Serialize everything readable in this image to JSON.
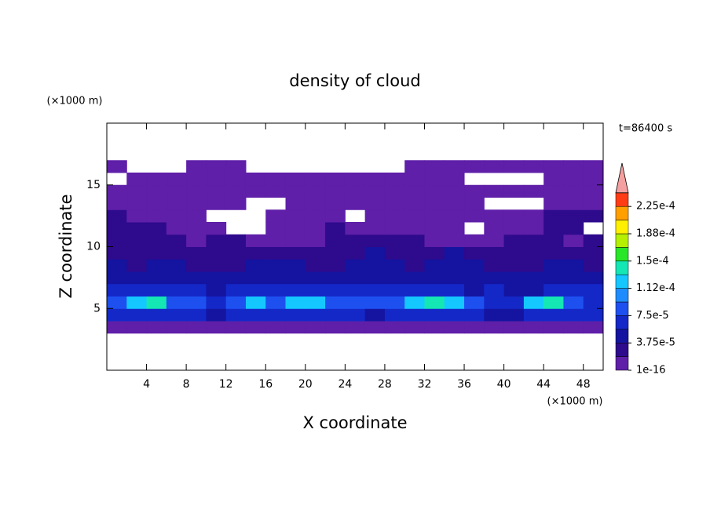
{
  "chart_data": {
    "type": "contour",
    "title": "density of cloud",
    "xlabel": "X coordinate",
    "ylabel": "Z coordinate",
    "xunit": "(×1000 m)",
    "yunit": "(×1000 m)",
    "annotation": "t=86400 s",
    "xlim": [
      0,
      50
    ],
    "ylim": [
      0,
      20
    ],
    "xticks": [
      4,
      8,
      12,
      16,
      20,
      24,
      28,
      32,
      36,
      40,
      44,
      48
    ],
    "yticks": [
      5,
      10,
      15
    ],
    "x": [
      1,
      3,
      5,
      7,
      9,
      11,
      13,
      15,
      17,
      19,
      21,
      23,
      25,
      27,
      29,
      31,
      33,
      35,
      37,
      39,
      41,
      43,
      45,
      47,
      49
    ],
    "y": [
      3.5,
      4.5,
      5.5,
      6.5,
      7.5,
      8.5,
      9.5,
      10.5,
      11.5,
      12.5,
      13.5,
      14.5,
      15.5,
      16.5
    ],
    "z": [
      [
        1e-05,
        1e-05,
        1e-05,
        1e-05,
        1e-05,
        1e-05,
        1e-05,
        1e-05,
        1e-05,
        1e-05,
        1e-05,
        1e-05,
        1e-05,
        1e-05,
        1e-05,
        1e-05,
        1e-05,
        1e-05,
        1e-05,
        1e-05,
        1e-05,
        1e-05,
        1e-05,
        1e-05,
        1e-05
      ],
      [
        7e-05,
        7e-05,
        7e-05,
        7e-05,
        7e-05,
        5e-05,
        7e-05,
        7e-05,
        7e-05,
        7e-05,
        7e-05,
        7e-05,
        7e-05,
        5e-05,
        7e-05,
        7e-05,
        7e-05,
        7e-05,
        7e-05,
        5e-05,
        5e-05,
        7e-05,
        7e-05,
        7e-05,
        7e-05
      ],
      [
        9e-05,
        0.00012,
        0.00014,
        9e-05,
        9e-05,
        7e-05,
        9e-05,
        0.00012,
        9e-05,
        0.00012,
        0.00012,
        9e-05,
        9e-05,
        9e-05,
        9e-05,
        0.00012,
        0.00014,
        0.00012,
        9e-05,
        7e-05,
        7e-05,
        0.00012,
        0.00014,
        9e-05,
        7e-05
      ],
      [
        7e-05,
        7e-05,
        7e-05,
        7e-05,
        7e-05,
        5e-05,
        7e-05,
        7e-05,
        7e-05,
        7e-05,
        7e-05,
        7e-05,
        7e-05,
        7e-05,
        7e-05,
        7e-05,
        7e-05,
        7e-05,
        5e-05,
        7e-05,
        5e-05,
        5e-05,
        7e-05,
        7e-05,
        7e-05
      ],
      [
        5e-05,
        5e-05,
        5e-05,
        5e-05,
        5e-05,
        5e-05,
        5e-05,
        5e-05,
        5e-05,
        5e-05,
        5e-05,
        5e-05,
        5e-05,
        5e-05,
        5e-05,
        5e-05,
        5e-05,
        5e-05,
        5e-05,
        5e-05,
        5e-05,
        5e-05,
        5e-05,
        5e-05,
        5e-05
      ],
      [
        5e-05,
        3e-05,
        5e-05,
        5e-05,
        3e-05,
        3e-05,
        3e-05,
        5e-05,
        5e-05,
        5e-05,
        3e-05,
        3e-05,
        5e-05,
        5e-05,
        5e-05,
        3e-05,
        5e-05,
        5e-05,
        5e-05,
        3e-05,
        3e-05,
        3e-05,
        5e-05,
        5e-05,
        3e-05
      ],
      [
        3e-05,
        3e-05,
        3e-05,
        3e-05,
        3e-05,
        3e-05,
        3e-05,
        3e-05,
        3e-05,
        3e-05,
        3e-05,
        3e-05,
        3e-05,
        5e-05,
        3e-05,
        3e-05,
        3e-05,
        5e-05,
        3e-05,
        3e-05,
        3e-05,
        3e-05,
        3e-05,
        3e-05,
        3e-05
      ],
      [
        3e-05,
        3e-05,
        3e-05,
        3e-05,
        1e-05,
        3e-05,
        3e-05,
        1e-05,
        1e-05,
        1e-05,
        1e-05,
        3e-05,
        3e-05,
        3e-05,
        3e-05,
        3e-05,
        1e-05,
        1e-05,
        1e-05,
        1e-05,
        3e-05,
        3e-05,
        3e-05,
        1e-05,
        3e-05
      ],
      [
        3e-05,
        3e-05,
        3e-05,
        1e-05,
        1e-05,
        1e-05,
        null,
        null,
        1e-05,
        1e-05,
        1e-05,
        3e-05,
        1e-05,
        1e-05,
        1e-05,
        1e-05,
        1e-05,
        1e-05,
        null,
        1e-05,
        1e-05,
        1e-05,
        3e-05,
        3e-05,
        null
      ],
      [
        3e-05,
        1e-05,
        1e-05,
        1e-05,
        1e-05,
        null,
        null,
        null,
        1e-05,
        1e-05,
        1e-05,
        1e-05,
        null,
        1e-05,
        1e-05,
        1e-05,
        1e-05,
        1e-05,
        1e-05,
        1e-05,
        1e-05,
        1e-05,
        3e-05,
        3e-05,
        3e-05
      ],
      [
        1e-05,
        1e-05,
        1e-05,
        1e-05,
        1e-05,
        1e-05,
        1e-05,
        null,
        null,
        1e-05,
        1e-05,
        1e-05,
        1e-05,
        1e-05,
        1e-05,
        1e-05,
        1e-05,
        1e-05,
        1e-05,
        null,
        null,
        null,
        1e-05,
        1e-05,
        1e-05
      ],
      [
        1e-05,
        1e-05,
        1e-05,
        1e-05,
        1e-05,
        1e-05,
        1e-05,
        1e-05,
        1e-05,
        1e-05,
        1e-05,
        1e-05,
        1e-05,
        1e-05,
        1e-05,
        1e-05,
        1e-05,
        1e-05,
        1e-05,
        1e-05,
        1e-05,
        1e-05,
        1e-05,
        1e-05,
        1e-05
      ],
      [
        null,
        1e-05,
        1e-05,
        1e-05,
        1e-05,
        1e-05,
        1e-05,
        1e-05,
        1e-05,
        1e-05,
        1e-05,
        1e-05,
        1e-05,
        1e-05,
        1e-05,
        1e-05,
        1e-05,
        1e-05,
        null,
        null,
        null,
        null,
        1e-05,
        1e-05,
        1e-05
      ],
      [
        1e-05,
        null,
        null,
        null,
        1e-05,
        1e-05,
        1e-05,
        null,
        null,
        null,
        null,
        null,
        null,
        null,
        null,
        1e-05,
        1e-05,
        1e-05,
        1e-05,
        1e-05,
        1e-05,
        1e-05,
        1e-05,
        1e-05,
        1e-05
      ]
    ],
    "colorbar": {
      "levels": [
        1e-16,
        1.875e-05,
        3.75e-05,
        5.625e-05,
        7.5e-05,
        9.375e-05,
        0.0001125,
        0.00013125,
        0.00015,
        0.00016875,
        0.0001875,
        0.00020625,
        0.000225,
        0.00024375
      ],
      "colors": [
        "#5f1fa8",
        "#2e0a8c",
        "#1414a0",
        "#1428c8",
        "#1e50f0",
        "#1e8cff",
        "#14c8ff",
        "#14e6b4",
        "#28e628",
        "#b4f000",
        "#fff000",
        "#ffa000",
        "#ff3c14"
      ],
      "extend_color": "#f4a0a0",
      "ticks": [
        {
          "value": 1e-16,
          "label": "1e-16"
        },
        {
          "value": 3.75e-05,
          "label": "3.75e-5"
        },
        {
          "value": 7.5e-05,
          "label": "7.5e-5"
        },
        {
          "value": 0.0001125,
          "label": "1.12e-4"
        },
        {
          "value": 0.00015,
          "label": "1.5e-4"
        },
        {
          "value": 0.0001875,
          "label": "1.88e-4"
        },
        {
          "value": 0.000225,
          "label": "2.25e-4"
        }
      ]
    }
  }
}
